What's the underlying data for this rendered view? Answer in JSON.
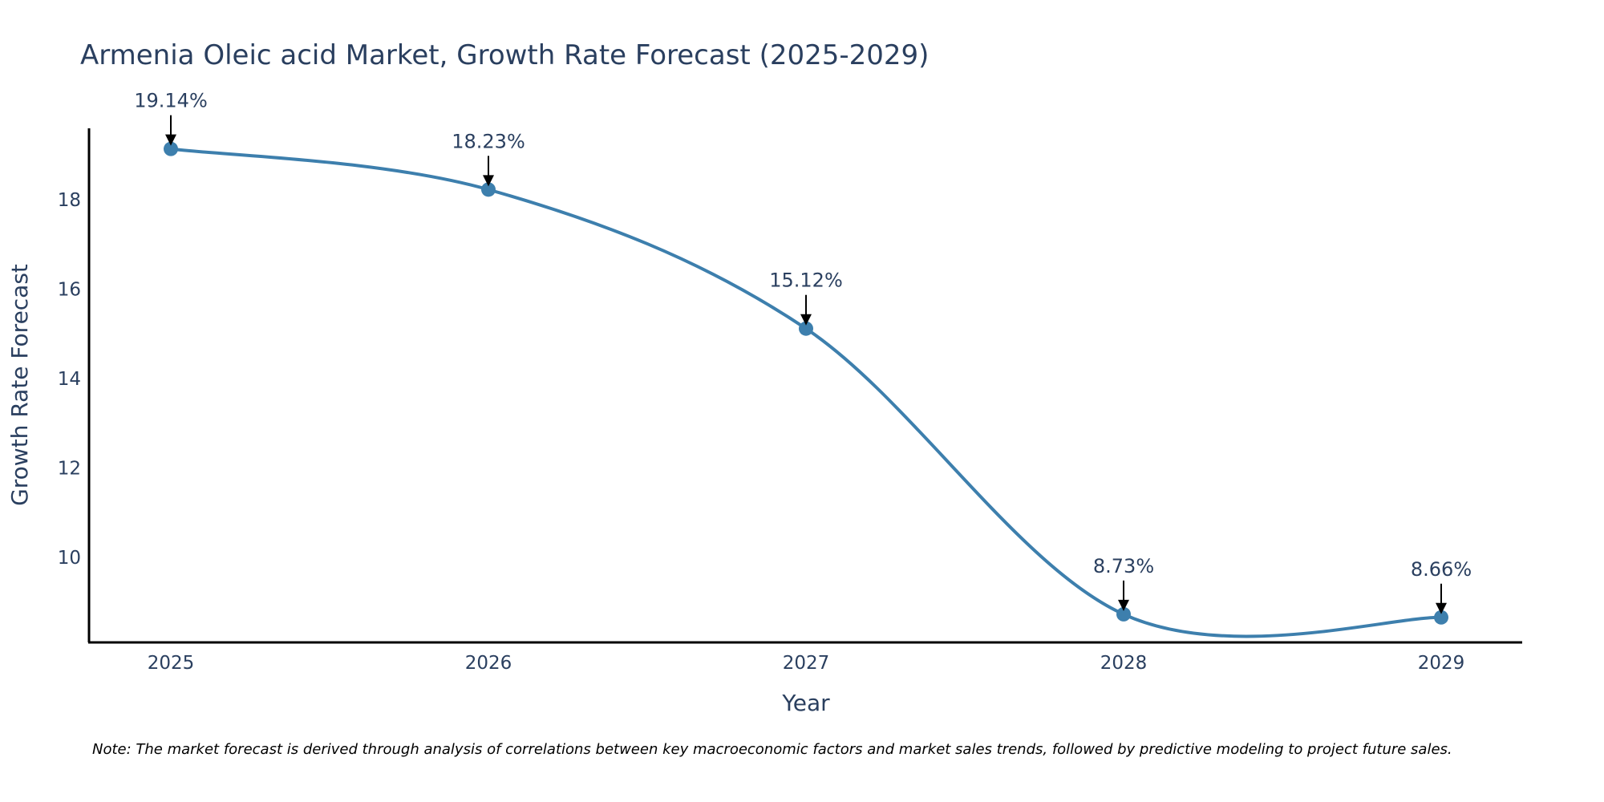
{
  "chart_data": {
    "type": "line",
    "title": "Armenia Oleic acid Market, Growth Rate Forecast (2025-2029)",
    "xlabel": "Year",
    "ylabel": "Growth Rate Forecast",
    "categories": [
      "2025",
      "2026",
      "2027",
      "2028",
      "2029"
    ],
    "values": [
      19.14,
      18.23,
      15.12,
      8.73,
      8.66
    ],
    "labels": [
      "19.14%",
      "18.23%",
      "15.12%",
      "8.73%",
      "8.66%"
    ],
    "yticks": [
      "10",
      "12",
      "14",
      "16",
      "18"
    ],
    "ylim": [
      8.1,
      19.6
    ],
    "grid": false,
    "line_color": "#3d7fad",
    "marker_color": "#3d7fad",
    "note": "Note: The market forecast is derived through analysis of correlations between key macroeconomic factors and market sales trends, followed by predictive modeling to project future sales."
  }
}
